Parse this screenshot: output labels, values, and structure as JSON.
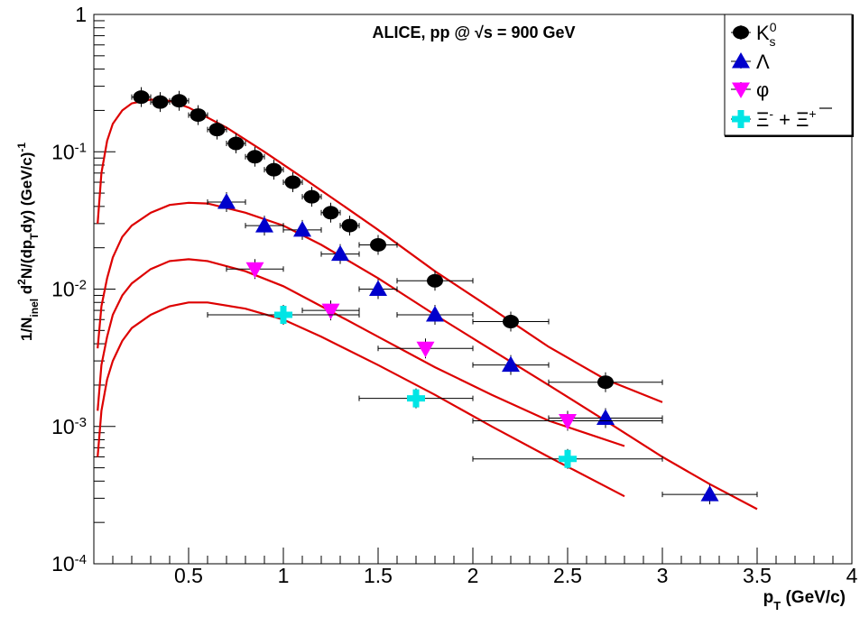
{
  "chart_data": {
    "type": "scatter",
    "title": "ALICE, pp @ √s = 900 GeV",
    "xlabel": "p_T (GeV/c)",
    "ylabel": "1/N_inel d²N/(dp_T dy) (GeV/c)⁻¹",
    "y_scale": "log",
    "xlim": [
      0.0,
      4.0
    ],
    "ylim": [
      0.0001,
      1
    ],
    "x_ticks": [
      "0.5",
      "1",
      "1.5",
      "2",
      "2.5",
      "3",
      "3.5",
      "4"
    ],
    "x_tick_values": [
      0.5,
      1,
      1.5,
      2,
      2.5,
      3,
      3.5,
      4
    ],
    "y_ticks": [
      {
        "base": "10",
        "exp": "-4",
        "value": 0.0001
      },
      {
        "base": "10",
        "exp": "-3",
        "value": 0.001
      },
      {
        "base": "10",
        "exp": "-2",
        "value": 0.01
      },
      {
        "base": "10",
        "exp": "-1",
        "value": 0.1
      },
      {
        "base": "1",
        "exp": "",
        "value": 1
      }
    ],
    "legend_position": "top-right",
    "series": [
      {
        "name": "K⁰s",
        "marker": "circle",
        "color": "#000000",
        "points": [
          {
            "x": 0.25,
            "y": 0.25,
            "xerr": 0.05
          },
          {
            "x": 0.35,
            "y": 0.23,
            "xerr": 0.05
          },
          {
            "x": 0.45,
            "y": 0.235,
            "xerr": 0.05
          },
          {
            "x": 0.55,
            "y": 0.185,
            "xerr": 0.05
          },
          {
            "x": 0.65,
            "y": 0.145,
            "xerr": 0.05
          },
          {
            "x": 0.75,
            "y": 0.115,
            "xerr": 0.05
          },
          {
            "x": 0.85,
            "y": 0.092,
            "xerr": 0.05
          },
          {
            "x": 0.95,
            "y": 0.074,
            "xerr": 0.05
          },
          {
            "x": 1.05,
            "y": 0.06,
            "xerr": 0.05
          },
          {
            "x": 1.15,
            "y": 0.047,
            "xerr": 0.05
          },
          {
            "x": 1.25,
            "y": 0.036,
            "xerr": 0.05
          },
          {
            "x": 1.35,
            "y": 0.029,
            "xerr": 0.05
          },
          {
            "x": 1.5,
            "y": 0.021,
            "xerr": 0.1
          },
          {
            "x": 1.8,
            "y": 0.0115,
            "xerr": 0.2
          },
          {
            "x": 2.2,
            "y": 0.0058,
            "xerr": 0.2
          },
          {
            "x": 2.7,
            "y": 0.0021,
            "xerr": 0.3
          }
        ]
      },
      {
        "name": "Λ",
        "marker": "triangle-up",
        "color": "#0000cc",
        "points": [
          {
            "x": 0.7,
            "y": 0.043,
            "xerr": 0.1
          },
          {
            "x": 0.9,
            "y": 0.029,
            "xerr": 0.1
          },
          {
            "x": 1.1,
            "y": 0.027,
            "xerr": 0.1
          },
          {
            "x": 1.3,
            "y": 0.018,
            "xerr": 0.1
          },
          {
            "x": 1.5,
            "y": 0.01,
            "xerr": 0.1
          },
          {
            "x": 1.8,
            "y": 0.0065,
            "xerr": 0.2
          },
          {
            "x": 2.2,
            "y": 0.0028,
            "xerr": 0.2
          },
          {
            "x": 2.7,
            "y": 0.00115,
            "xerr": 0.3
          },
          {
            "x": 3.25,
            "y": 0.00032,
            "xerr": 0.25
          }
        ]
      },
      {
        "name": "φ",
        "marker": "triangle-down",
        "color": "#ff00ff",
        "points": [
          {
            "x": 0.85,
            "y": 0.014,
            "xerr": 0.15
          },
          {
            "x": 1.25,
            "y": 0.007,
            "xerr": 0.15
          },
          {
            "x": 1.75,
            "y": 0.0037,
            "xerr": 0.25
          },
          {
            "x": 2.5,
            "y": 0.0011,
            "xerr": 0.5
          }
        ]
      },
      {
        "name": "Ξ⁻ + Ξ̄⁺",
        "marker": "cross",
        "color": "#00e5e5",
        "points": [
          {
            "x": 1.0,
            "y": 0.0065,
            "xerr": 0.4
          },
          {
            "x": 1.7,
            "y": 0.0016,
            "xerr": 0.3
          },
          {
            "x": 2.5,
            "y": 0.00058,
            "xerr": 0.5
          }
        ]
      }
    ],
    "fit_curves": {
      "color": "#dd0000",
      "curves": [
        {
          "for": "K⁰s",
          "x_end": 3.0,
          "points": [
            [
              0.02,
              0.03
            ],
            [
              0.04,
              0.07
            ],
            [
              0.07,
              0.12
            ],
            [
              0.1,
              0.16
            ],
            [
              0.15,
              0.2
            ],
            [
              0.2,
              0.225
            ],
            [
              0.3,
              0.24
            ],
            [
              0.4,
              0.235
            ],
            [
              0.5,
              0.21
            ],
            [
              0.7,
              0.15
            ],
            [
              0.9,
              0.1
            ],
            [
              1.1,
              0.065
            ],
            [
              1.3,
              0.042
            ],
            [
              1.5,
              0.027
            ],
            [
              1.8,
              0.0135
            ],
            [
              2.1,
              0.0072
            ],
            [
              2.4,
              0.0038
            ],
            [
              2.7,
              0.0022
            ],
            [
              3.0,
              0.0015
            ]
          ]
        },
        {
          "for": "Λ",
          "x_end": 3.5,
          "points": [
            [
              0.02,
              0.0037
            ],
            [
              0.04,
              0.0075
            ],
            [
              0.07,
              0.012
            ],
            [
              0.1,
              0.017
            ],
            [
              0.15,
              0.024
            ],
            [
              0.2,
              0.029
            ],
            [
              0.3,
              0.036
            ],
            [
              0.4,
              0.041
            ],
            [
              0.5,
              0.0425
            ],
            [
              0.6,
              0.042
            ],
            [
              0.8,
              0.036
            ],
            [
              1.0,
              0.029
            ],
            [
              1.2,
              0.021
            ],
            [
              1.5,
              0.012
            ],
            [
              1.8,
              0.0065
            ],
            [
              2.1,
              0.0036
            ],
            [
              2.4,
              0.002
            ],
            [
              2.7,
              0.0011
            ],
            [
              3.0,
              0.0006
            ],
            [
              3.25,
              0.00038
            ],
            [
              3.5,
              0.00025
            ]
          ]
        },
        {
          "for": "φ",
          "x_end": 2.8,
          "points": [
            [
              0.02,
              0.0013
            ],
            [
              0.04,
              0.0028
            ],
            [
              0.07,
              0.0045
            ],
            [
              0.1,
              0.0065
            ],
            [
              0.15,
              0.009
            ],
            [
              0.2,
              0.011
            ],
            [
              0.3,
              0.014
            ],
            [
              0.4,
              0.016
            ],
            [
              0.5,
              0.0165
            ],
            [
              0.6,
              0.016
            ],
            [
              0.8,
              0.0135
            ],
            [
              1.0,
              0.0105
            ],
            [
              1.2,
              0.0075
            ],
            [
              1.5,
              0.0045
            ],
            [
              1.8,
              0.0027
            ],
            [
              2.1,
              0.0017
            ],
            [
              2.4,
              0.0011
            ],
            [
              2.8,
              0.00072
            ]
          ]
        },
        {
          "for": "Ξ",
          "x_end": 2.8,
          "points": [
            [
              0.02,
              0.0006
            ],
            [
              0.04,
              0.0013
            ],
            [
              0.07,
              0.0022
            ],
            [
              0.1,
              0.003
            ],
            [
              0.15,
              0.0042
            ],
            [
              0.2,
              0.0052
            ],
            [
              0.3,
              0.0065
            ],
            [
              0.4,
              0.0075
            ],
            [
              0.5,
              0.008
            ],
            [
              0.6,
              0.008
            ],
            [
              0.8,
              0.0072
            ],
            [
              1.0,
              0.006
            ],
            [
              1.2,
              0.0045
            ],
            [
              1.5,
              0.0028
            ],
            [
              1.8,
              0.0017
            ],
            [
              2.1,
              0.001
            ],
            [
              2.4,
              0.0006
            ],
            [
              2.8,
              0.00031
            ]
          ]
        }
      ]
    }
  }
}
